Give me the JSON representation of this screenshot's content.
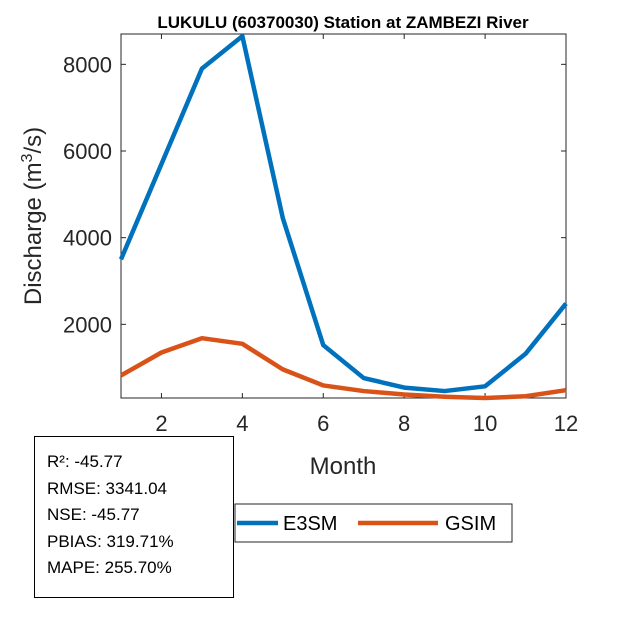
{
  "chart_data": {
    "type": "line",
    "title": "LUKULU (60370030)  Station at  ZAMBEZI  River",
    "xlabel": "Month",
    "ylabel_main": "Discharge (m",
    "ylabel_sup": "3",
    "ylabel_end": "/s)",
    "xlim": [
      1,
      12
    ],
    "ylim": [
      300,
      8700
    ],
    "xticks": [
      2,
      4,
      6,
      8,
      10,
      12
    ],
    "yticks": [
      2000,
      4000,
      6000,
      8000
    ],
    "x": [
      1,
      2,
      3,
      4,
      5,
      6,
      7,
      8,
      9,
      10,
      11,
      12
    ],
    "series": [
      {
        "name": "E3SM",
        "color": "#0072BD",
        "values": [
          3500,
          5700,
          7900,
          8650,
          4450,
          1520,
          760,
          540,
          460,
          570,
          1320,
          2480
        ]
      },
      {
        "name": "GSIM",
        "color": "#D95319",
        "values": [
          820,
          1350,
          1680,
          1550,
          960,
          590,
          460,
          380,
          330,
          300,
          340,
          480
        ]
      }
    ],
    "legend_position": "bottom-center"
  },
  "stats": [
    "R²: -45.77",
    "RMSE: 3341.04",
    "NSE: -45.77",
    "PBIAS: 319.71%",
    "MAPE: 255.70%"
  ]
}
